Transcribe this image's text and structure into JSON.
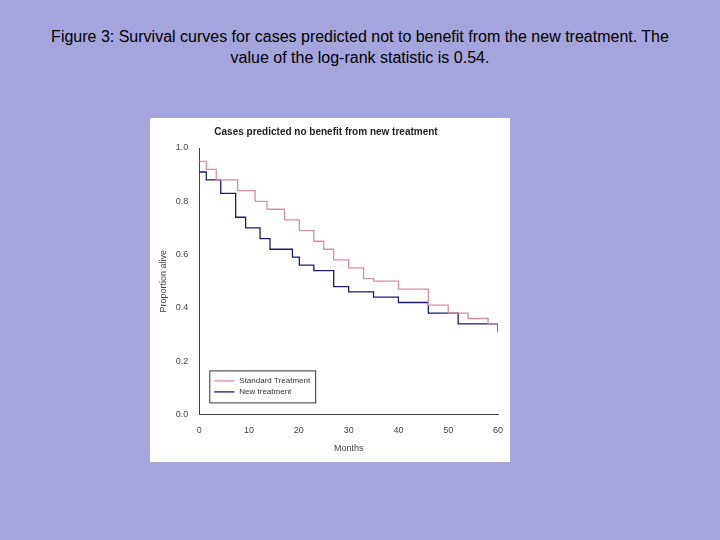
{
  "caption": "Figure 3: Survival curves for cases predicted not to benefit from the new treatment. The value of the log-rank statistic is 0.54.",
  "chart_data": {
    "type": "line",
    "title": "Cases predicted no benefit from new treatment",
    "x_label": "Months",
    "y_label": "Proportion alive",
    "xlim": [
      0,
      60
    ],
    "xticks": [
      0,
      10,
      20,
      30,
      40,
      50,
      60
    ],
    "ylim": [
      0,
      1
    ],
    "yticks": [
      {
        "value": 0,
        "label": "0.0"
      },
      0.2,
      0.4,
      0.6,
      0.8,
      {
        "value": 1,
        "label": "1.0"
      }
    ],
    "grid": false,
    "legend": "lower left",
    "line_style": "step",
    "series": [
      {
        "name": "Standard Treatment",
        "color": "#d98fa0",
        "x": [
          0,
          1.4,
          3.4,
          7.7,
          11.2,
          13.6,
          17.1,
          20.1,
          23,
          25,
          27,
          30,
          33,
          35,
          40,
          46,
          50,
          54,
          58,
          60
        ],
        "values": [
          0.95,
          0.92,
          0.88,
          0.84,
          0.8,
          0.77,
          0.73,
          0.69,
          0.65,
          0.62,
          0.58,
          0.55,
          0.51,
          0.5,
          0.47,
          0.41,
          0.38,
          0.36,
          0.34,
          0.34
        ]
      },
      {
        "name": "New treatment",
        "color": "#1c1c6e",
        "x": [
          0,
          1.4,
          4.3,
          7.3,
          9.3,
          12.2,
          14.2,
          18.7,
          20.1,
          23,
          27,
          30,
          35,
          40,
          46,
          52,
          60
        ],
        "values": [
          0.91,
          0.88,
          0.83,
          0.74,
          0.7,
          0.66,
          0.62,
          0.59,
          0.56,
          0.54,
          0.48,
          0.46,
          0.44,
          0.42,
          0.38,
          0.34,
          0.31
        ]
      }
    ]
  }
}
